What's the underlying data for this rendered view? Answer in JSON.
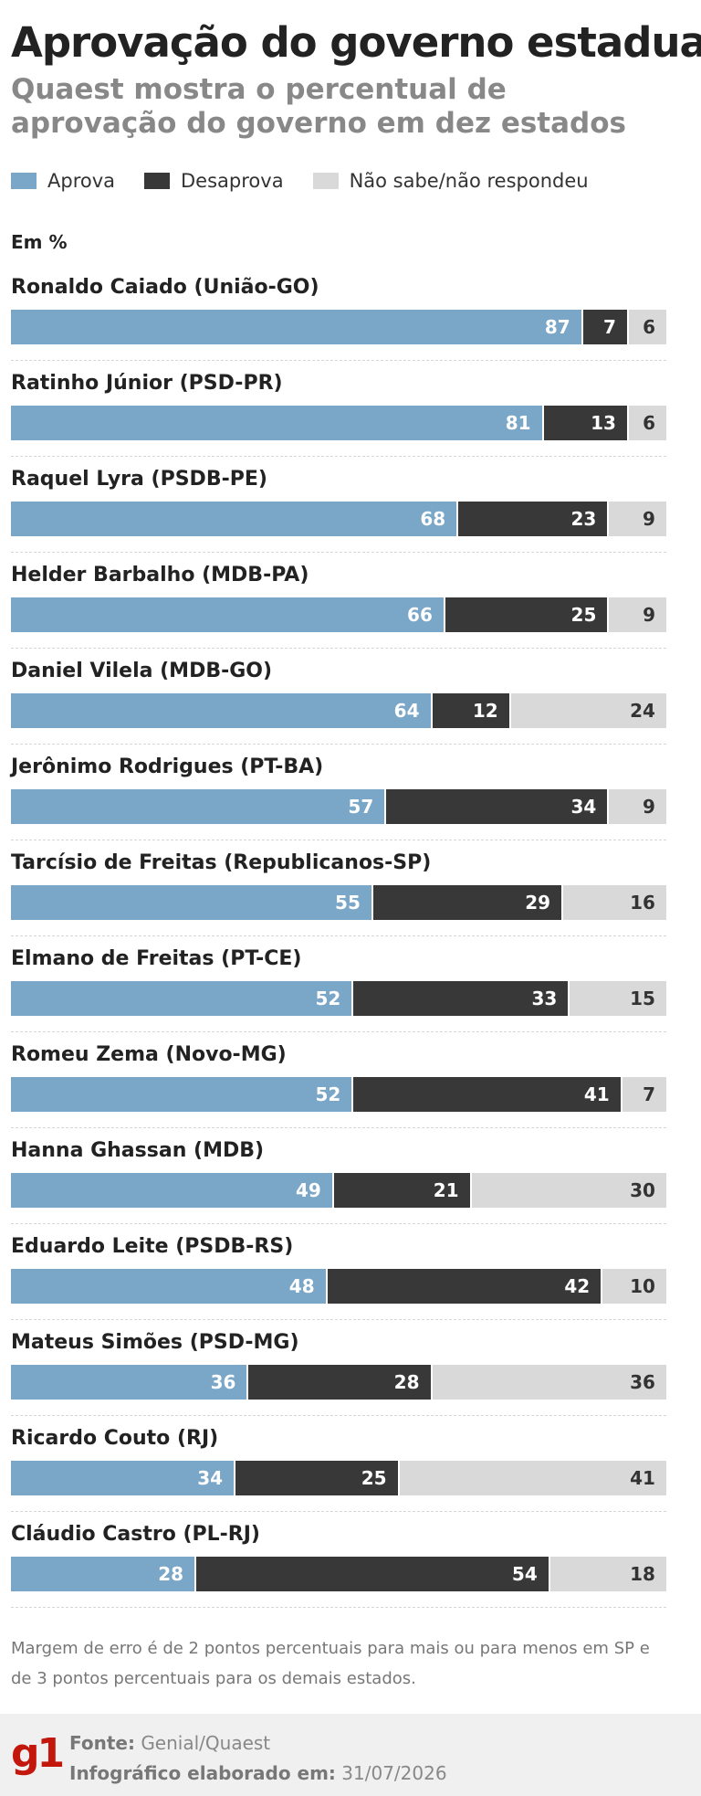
{
  "header": {
    "title": "Aprovação do governo estadual",
    "subtitle": "Quaest mostra o percentual de aprovação do governo em dez estados"
  },
  "legend": {
    "approve": "Aprova",
    "disapprove": "Desaprova",
    "unknown": "Não sabe/não respondeu"
  },
  "colors": {
    "approve": "#7aa6c8",
    "disapprove": "#383838",
    "unknown": "#d9d9d9"
  },
  "unit_label": "Em %",
  "chart_data": {
    "type": "bar",
    "orientation": "horizontal-stacked",
    "categories": [
      "Ronaldo Caiado (União-GO)",
      "Ratinho Júnior (PSD-PR)",
      "Raquel Lyra (PSDB-PE)",
      "Helder Barbalho (MDB-PA)",
      "Daniel Vilela (MDB-GO)",
      "Jerônimo Rodrigues (PT-BA)",
      "Tarcísio de Freitas (Republicanos-SP)",
      "Elmano de Freitas (PT-CE)",
      "Romeu Zema (Novo-MG)",
      "Hanna Ghassan (MDB)",
      "Eduardo Leite (PSDB-RS)",
      "Mateus Simões (PSD-MG)",
      "Ricardo Couto (RJ)",
      "Cláudio Castro (PL-RJ)"
    ],
    "series": [
      {
        "name": "Aprova",
        "values": [
          87,
          81,
          68,
          66,
          64,
          57,
          55,
          52,
          52,
          49,
          48,
          36,
          34,
          28
        ]
      },
      {
        "name": "Desaprova",
        "values": [
          7,
          13,
          23,
          25,
          12,
          34,
          29,
          33,
          41,
          21,
          42,
          28,
          25,
          54
        ]
      },
      {
        "name": "Não sabe/não respondeu",
        "values": [
          6,
          6,
          9,
          9,
          24,
          9,
          16,
          15,
          7,
          30,
          10,
          36,
          41,
          18
        ]
      }
    ],
    "xlim": [
      0,
      100
    ]
  },
  "note": "Margem de erro é de 2 pontos percentuais para mais ou para menos em SP e de 3 pontos percentuais para os demais estados.",
  "footer": {
    "logo": "g1",
    "source_label": "Fonte:",
    "source_value": "Genial/Quaest",
    "made_label": "Infográfico elaborado em:",
    "made_value": "31/07/2026"
  }
}
